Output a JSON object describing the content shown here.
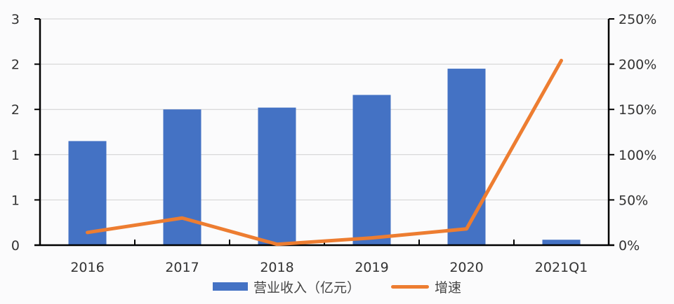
{
  "chart_data": {
    "type": "bar",
    "title": "",
    "categories": [
      "2016",
      "2017",
      "2018",
      "2019",
      "2020",
      "2021Q1"
    ],
    "series": [
      {
        "name": "营业收入（亿元）",
        "type": "bar",
        "axis": "left",
        "color": "#4472c4",
        "values": [
          1.15,
          1.5,
          1.52,
          1.66,
          1.95,
          0.06
        ]
      },
      {
        "name": "增速",
        "type": "line",
        "axis": "right",
        "color": "#ed7d31",
        "values": [
          14,
          30,
          1,
          8,
          18,
          204
        ]
      }
    ],
    "left_axis": {
      "ylim": [
        0,
        2.5
      ],
      "tick_labels": [
        "0",
        "1",
        "1",
        "2",
        "2",
        "3"
      ]
    },
    "right_axis": {
      "ylim": [
        0,
        250
      ],
      "tick_labels": [
        "0%",
        "50%",
        "100%",
        "150%",
        "200%",
        "250%"
      ]
    },
    "xlabel": "",
    "ylabel": "",
    "grid": true,
    "legend_position": "bottom"
  },
  "legend": {
    "bar_label": "营业收入（亿元）",
    "line_label": "增速"
  }
}
